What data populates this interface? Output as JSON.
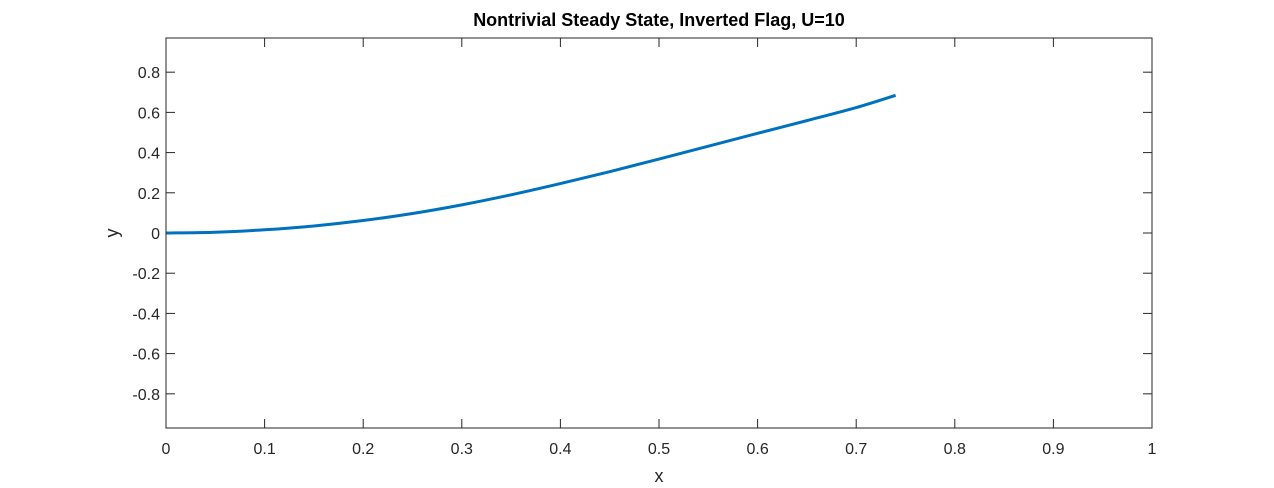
{
  "chart_data": {
    "type": "line",
    "title": "Nontrivial Steady State, Inverted Flag, U=10",
    "xlabel": "x",
    "ylabel": "y",
    "xlim": [
      0,
      1
    ],
    "ylim": [
      -0.97,
      0.97
    ],
    "xticks": [
      0,
      0.1,
      0.2,
      0.3,
      0.4,
      0.5,
      0.6,
      0.7,
      0.8,
      0.9,
      1
    ],
    "xtick_labels": [
      "0",
      "0.1",
      "0.2",
      "0.3",
      "0.4",
      "0.5",
      "0.6",
      "0.7",
      "0.8",
      "0.9",
      "1"
    ],
    "yticks": [
      0.8,
      0.6,
      0.4,
      0.2,
      0,
      -0.2,
      -0.4,
      -0.6,
      -0.8
    ],
    "ytick_labels": [
      "0.8",
      "0.6",
      "0.4",
      "0.2",
      "0",
      "-0.2",
      "-0.4",
      "-0.6",
      "-0.8"
    ],
    "grid": false,
    "box": true,
    "series": [
      {
        "color": "#0072BD",
        "x": [
          0,
          0.05,
          0.1,
          0.15,
          0.2,
          0.25,
          0.3,
          0.35,
          0.4,
          0.45,
          0.5,
          0.55,
          0.6,
          0.65,
          0.7,
          0.74
        ],
        "y": [
          0,
          0.004,
          0.016,
          0.035,
          0.062,
          0.097,
          0.14,
          0.19,
          0.246,
          0.305,
          0.368,
          0.432,
          0.496,
          0.559,
          0.624,
          0.685
        ]
      }
    ]
  }
}
